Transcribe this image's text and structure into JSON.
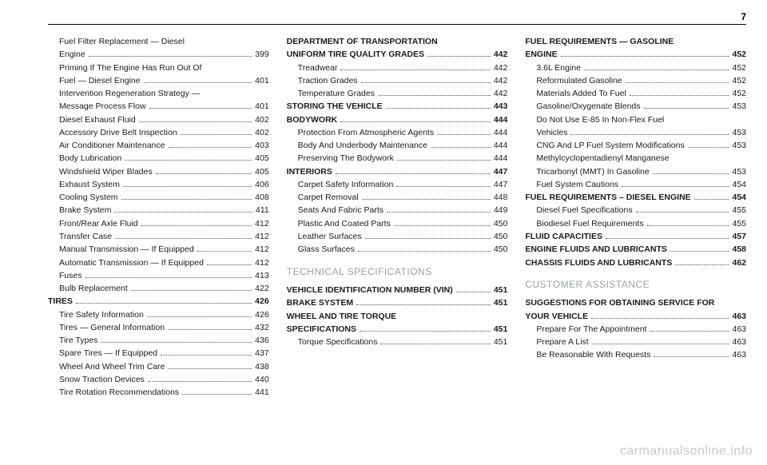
{
  "page_number": "7",
  "footer": "carmanualsonline.info",
  "columns": [
    {
      "blocks": [
        {
          "type": "toc",
          "indent": 1,
          "wrap": [
            "Fuel Filter Replacement — Diesel",
            "Engine"
          ],
          "page": "399"
        },
        {
          "type": "toc",
          "indent": 1,
          "wrap": [
            "Priming If The Engine Has Run Out Of",
            "Fuel — Diesel Engine"
          ],
          "page": "401"
        },
        {
          "type": "toc",
          "indent": 1,
          "wrap": [
            "Intervention Regeneration Strategy —",
            "Message Process Flow"
          ],
          "page": "401"
        },
        {
          "type": "toc",
          "indent": 1,
          "label": "Diesel Exhaust Fluid",
          "page": "402"
        },
        {
          "type": "toc",
          "indent": 1,
          "label": "Accessory Drive Belt Inspection",
          "page": "402"
        },
        {
          "type": "toc",
          "indent": 1,
          "label": "Air Conditioner Maintenance",
          "page": "403"
        },
        {
          "type": "toc",
          "indent": 1,
          "label": "Body Lubrication",
          "page": "405"
        },
        {
          "type": "toc",
          "indent": 1,
          "label": "Windshield Wiper Blades",
          "page": "405"
        },
        {
          "type": "toc",
          "indent": 1,
          "label": "Exhaust System",
          "page": "406"
        },
        {
          "type": "toc",
          "indent": 1,
          "label": "Cooling System",
          "page": "408"
        },
        {
          "type": "toc",
          "indent": 1,
          "label": "Brake System",
          "page": "411"
        },
        {
          "type": "toc",
          "indent": 1,
          "label": "Front/Rear Axle Fluid",
          "page": "412"
        },
        {
          "type": "toc",
          "indent": 1,
          "label": "Transfer Case",
          "page": "412"
        },
        {
          "type": "toc",
          "indent": 1,
          "label": "Manual Transmission — If Equipped",
          "page": "412"
        },
        {
          "type": "toc",
          "indent": 1,
          "label": "Automatic Transmission — If Equipped",
          "page": "412"
        },
        {
          "type": "toc",
          "indent": 1,
          "label": "Fuses",
          "page": "413"
        },
        {
          "type": "toc",
          "indent": 1,
          "label": "Bulb Replacement",
          "page": "422"
        },
        {
          "type": "toc",
          "indent": 0,
          "label": "TIRES",
          "page": "426"
        },
        {
          "type": "toc",
          "indent": 1,
          "label": "Tire Safety Information",
          "page": "426"
        },
        {
          "type": "toc",
          "indent": 1,
          "label": "Tires — General Information",
          "page": "432"
        },
        {
          "type": "toc",
          "indent": 1,
          "label": "Tire Types",
          "page": "436"
        },
        {
          "type": "toc",
          "indent": 1,
          "label": "Spare Tires — If Equipped",
          "page": "437"
        },
        {
          "type": "toc",
          "indent": 1,
          "label": "Wheel And Wheel Trim Care",
          "page": "438"
        },
        {
          "type": "toc",
          "indent": 1,
          "label": "Snow Traction Devices",
          "page": "440"
        },
        {
          "type": "toc",
          "indent": 1,
          "label": "Tire Rotation Recommendations",
          "page": "441"
        }
      ]
    },
    {
      "blocks": [
        {
          "type": "toc",
          "indent": 0,
          "wrap": [
            "DEPARTMENT OF TRANSPORTATION",
            "UNIFORM TIRE QUALITY GRADES"
          ],
          "page": "442"
        },
        {
          "type": "toc",
          "indent": 1,
          "label": "Treadwear",
          "page": "442"
        },
        {
          "type": "toc",
          "indent": 1,
          "label": "Traction Grades",
          "page": "442"
        },
        {
          "type": "toc",
          "indent": 1,
          "label": "Temperature Grades",
          "page": "442"
        },
        {
          "type": "toc",
          "indent": 0,
          "label": "STORING THE VEHICLE",
          "page": "443"
        },
        {
          "type": "toc",
          "indent": 0,
          "label": "BODYWORK",
          "page": "444"
        },
        {
          "type": "toc",
          "indent": 1,
          "label": "Protection From Atmospheric Agents",
          "page": "444"
        },
        {
          "type": "toc",
          "indent": 1,
          "label": "Body And Underbody Maintenance",
          "page": "444"
        },
        {
          "type": "toc",
          "indent": 1,
          "label": "Preserving The Bodywork",
          "page": "444"
        },
        {
          "type": "toc",
          "indent": 0,
          "label": "INTERIORS",
          "page": "447"
        },
        {
          "type": "toc",
          "indent": 1,
          "label": "Carpet Safety Information",
          "page": "447"
        },
        {
          "type": "toc",
          "indent": 1,
          "label": "Carpet Removal",
          "page": "448"
        },
        {
          "type": "toc",
          "indent": 1,
          "label": "Seats And Fabric Parts",
          "page": "449"
        },
        {
          "type": "toc",
          "indent": 1,
          "label": "Plastic And Coated Parts",
          "page": "450"
        },
        {
          "type": "toc",
          "indent": 1,
          "label": "Leather Surfaces",
          "page": "450"
        },
        {
          "type": "toc",
          "indent": 1,
          "label": "Glass Surfaces",
          "page": "450"
        },
        {
          "type": "section",
          "title": "TECHNICAL SPECIFICATIONS"
        },
        {
          "type": "toc",
          "indent": 0,
          "label": "VEHICLE IDENTIFICATION NUMBER (VIN)",
          "page": "451"
        },
        {
          "type": "toc",
          "indent": 0,
          "label": "BRAKE SYSTEM",
          "page": "451"
        },
        {
          "type": "toc",
          "indent": 0,
          "wrap": [
            "WHEEL AND TIRE TORQUE",
            "SPECIFICATIONS"
          ],
          "page": "451"
        },
        {
          "type": "toc",
          "indent": 1,
          "label": "Torque Specifications",
          "page": "451"
        }
      ]
    },
    {
      "blocks": [
        {
          "type": "toc",
          "indent": 0,
          "wrap": [
            "FUEL REQUIREMENTS — GASOLINE",
            "ENGINE"
          ],
          "page": "452"
        },
        {
          "type": "toc",
          "indent": 1,
          "label": "3.6L Engine",
          "page": "452"
        },
        {
          "type": "toc",
          "indent": 1,
          "label": "Reformulated Gasoline",
          "page": "452"
        },
        {
          "type": "toc",
          "indent": 1,
          "label": "Materials Added To Fuel",
          "page": "452"
        },
        {
          "type": "toc",
          "indent": 1,
          "label": "Gasoline/Oxygenate Blends",
          "page": "453"
        },
        {
          "type": "toc",
          "indent": 1,
          "wrap": [
            "Do Not Use E-85 In Non-Flex Fuel",
            "Vehicles"
          ],
          "page": "453"
        },
        {
          "type": "toc",
          "indent": 1,
          "label": "CNG And LP Fuel System Modifications",
          "page": "453"
        },
        {
          "type": "toc",
          "indent": 1,
          "wrap": [
            "Methylcyclopentadienyl Manganese",
            "Tricarbonyl (MMT) In Gasoline"
          ],
          "page": "453"
        },
        {
          "type": "toc",
          "indent": 1,
          "label": "Fuel System Cautions",
          "page": "454"
        },
        {
          "type": "toc",
          "indent": 0,
          "label": "FUEL REQUIREMENTS – DIESEL ENGINE",
          "page": "454"
        },
        {
          "type": "toc",
          "indent": 1,
          "label": "Diesel Fuel Specifications",
          "page": "455"
        },
        {
          "type": "toc",
          "indent": 1,
          "label": "Biodiesel Fuel Requirements",
          "page": "455"
        },
        {
          "type": "toc",
          "indent": 0,
          "label": "FLUID CAPACITIES",
          "page": "457"
        },
        {
          "type": "toc",
          "indent": 0,
          "label": "ENGINE FLUIDS AND LUBRICANTS",
          "page": "458"
        },
        {
          "type": "toc",
          "indent": 0,
          "label": "CHASSIS FLUIDS AND LUBRICANTS",
          "page": "462"
        },
        {
          "type": "section",
          "title": "CUSTOMER ASSISTANCE"
        },
        {
          "type": "toc",
          "indent": 0,
          "wrap": [
            "SUGGESTIONS FOR OBTAINING SERVICE FOR",
            "YOUR VEHICLE"
          ],
          "page": "463"
        },
        {
          "type": "toc",
          "indent": 1,
          "label": "Prepare For The Appointment",
          "page": "463"
        },
        {
          "type": "toc",
          "indent": 1,
          "label": "Prepare A List",
          "page": "463"
        },
        {
          "type": "toc",
          "indent": 1,
          "label": "Be Reasonable With Requests",
          "page": "463"
        }
      ]
    }
  ]
}
